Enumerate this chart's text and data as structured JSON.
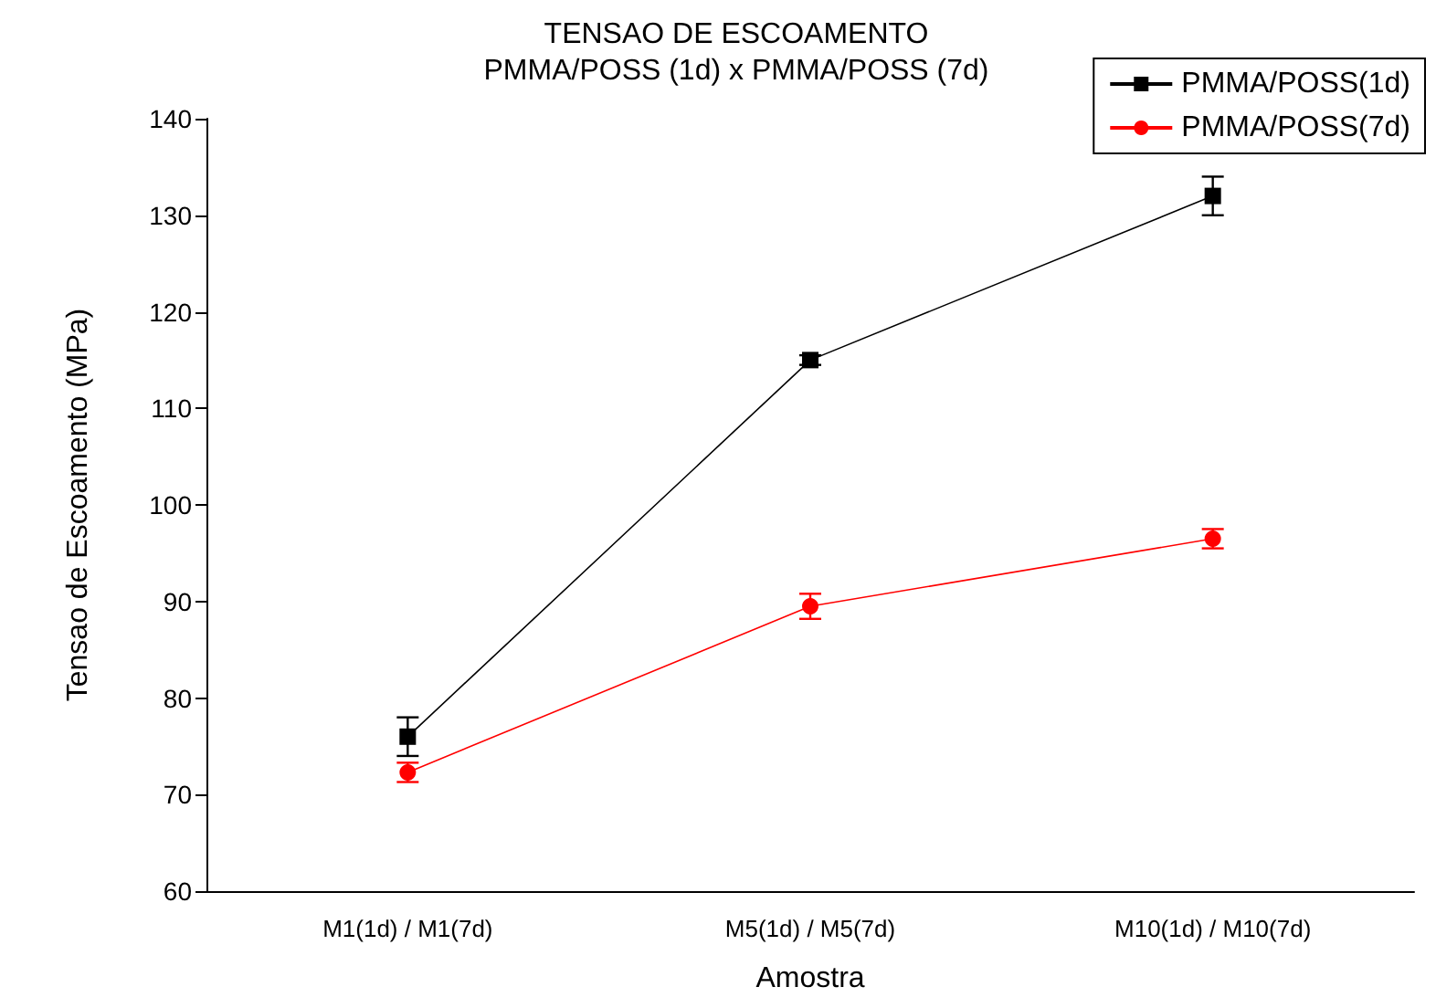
{
  "chart_data": {
    "type": "line",
    "title": "TENSAO DE ESCOAMENTO",
    "subtitle": "PMMA/POSS (1d) x PMMA/POSS (7d)",
    "xlabel": "Amostra",
    "ylabel": "Tensao de Escoamento (MPa)",
    "categories": [
      "M1(1d) / M1(7d)",
      "M5(1d) / M5(7d)",
      "M10(1d) / M10(7d)"
    ],
    "series": [
      {
        "name": "PMMA/POSS(1d)",
        "color": "#000000",
        "marker": "square",
        "values": [
          76,
          115,
          132
        ],
        "errors": [
          2,
          0.5,
          2
        ]
      },
      {
        "name": "PMMA/POSS(7d)",
        "color": "#ff0000",
        "marker": "circle",
        "values": [
          72.3,
          89.5,
          96.5
        ],
        "errors": [
          1,
          1.3,
          1
        ]
      }
    ],
    "ylim": [
      60,
      140
    ],
    "yticks": [
      60,
      70,
      80,
      90,
      100,
      110,
      120,
      130,
      140
    ],
    "grid": false,
    "legend": "top right",
    "line_style": "solid"
  }
}
